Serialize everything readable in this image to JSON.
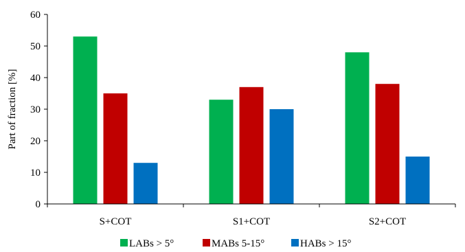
{
  "chart_data": {
    "type": "bar",
    "title": "",
    "xlabel": "",
    "ylabel": "Part of fraction [%]",
    "ylim": [
      0,
      60
    ],
    "yticks": [
      0,
      10,
      20,
      30,
      40,
      50,
      60
    ],
    "grid": false,
    "legend_position": "bottom",
    "categories": [
      "S+COT",
      "S1+COT",
      "S2+COT"
    ],
    "series": [
      {
        "name": "LABs > 5°",
        "color": "#00b050",
        "values": [
          53,
          33,
          48
        ]
      },
      {
        "name": "MABs 5-15°",
        "color": "#c00000",
        "values": [
          35,
          37,
          38
        ]
      },
      {
        "name": "HABs > 15°",
        "color": "#0070c0",
        "values": [
          13,
          30,
          15
        ]
      }
    ]
  }
}
